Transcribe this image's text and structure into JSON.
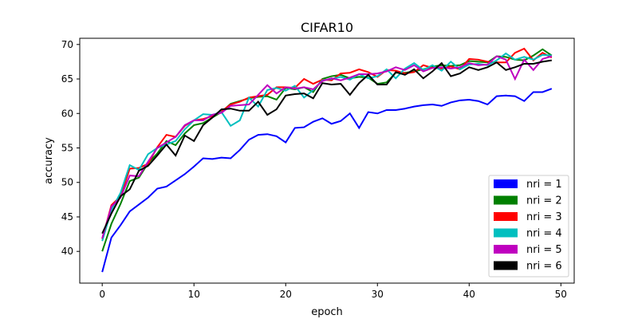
{
  "chart_data": {
    "type": "line",
    "title": "CIFAR10",
    "xlabel": "epoch",
    "ylabel": "accuracy",
    "xlim": [
      -2.45,
      51.45
    ],
    "ylim": [
      35.4,
      70.9
    ],
    "xticks": [
      0,
      10,
      20,
      30,
      40,
      50
    ],
    "yticks": [
      40,
      45,
      50,
      55,
      60,
      65,
      70
    ],
    "legend_position": "lower-right",
    "grid": false,
    "series": [
      {
        "name": "nri = 1",
        "color": "#0000ff",
        "values": [
          37.0,
          42.0,
          43.8,
          45.8,
          46.8,
          47.8,
          49.1,
          49.4,
          50.3,
          51.2,
          52.3,
          53.5,
          53.4,
          53.6,
          53.5,
          54.7,
          56.2,
          56.9,
          57.0,
          56.7,
          55.8,
          57.9,
          58.0,
          58.8,
          59.3,
          58.5,
          58.9,
          60.0,
          57.9,
          60.2,
          60.0,
          60.5,
          60.5,
          60.7,
          61.0,
          61.2,
          61.3,
          61.1,
          61.6,
          61.9,
          62.0,
          61.8,
          61.3,
          62.5,
          62.6,
          62.5,
          61.8,
          63.1,
          63.1,
          63.6
        ]
      },
      {
        "name": "nri = 2",
        "color": "#008000",
        "values": [
          40.0,
          44.0,
          46.9,
          50.2,
          50.7,
          52.8,
          54.2,
          56.0,
          55.4,
          57.1,
          58.3,
          58.6,
          59.4,
          60.2,
          61.4,
          61.8,
          62.2,
          62.4,
          62.5,
          62.0,
          63.7,
          63.5,
          63.8,
          63.1,
          65.0,
          65.4,
          65.6,
          65.1,
          65.3,
          65.2,
          64.3,
          64.5,
          65.9,
          65.9,
          66.1,
          66.4,
          66.8,
          67.0,
          66.9,
          67.0,
          67.6,
          67.5,
          67.4,
          68.3,
          68.2,
          67.8,
          67.7,
          68.4,
          69.3,
          68.4
        ]
      },
      {
        "name": "nri = 3",
        "color": "#ff0000",
        "values": [
          41.8,
          46.7,
          48.0,
          52.0,
          52.1,
          52.7,
          55.1,
          56.9,
          56.6,
          58.2,
          59.0,
          59.2,
          59.6,
          60.3,
          61.3,
          61.7,
          62.3,
          62.5,
          62.7,
          63.8,
          63.8,
          63.7,
          65.0,
          64.3,
          64.9,
          64.8,
          65.8,
          65.9,
          66.4,
          66.0,
          65.3,
          66.3,
          66.2,
          65.8,
          66.0,
          67.0,
          66.6,
          66.5,
          66.8,
          66.4,
          67.9,
          67.8,
          67.5,
          67.4,
          67.4,
          68.8,
          69.4,
          67.7,
          68.8,
          68.1
        ]
      },
      {
        "name": "nri = 4",
        "color": "#00bfbf",
        "values": [
          41.5,
          46.0,
          48.5,
          52.5,
          51.8,
          54.1,
          55.0,
          55.5,
          56.0,
          57.7,
          59.0,
          59.9,
          59.8,
          60.2,
          58.2,
          59.0,
          62.3,
          61.0,
          63.4,
          63.7,
          63.3,
          64.0,
          62.3,
          63.4,
          64.8,
          65.0,
          65.3,
          64.9,
          65.7,
          65.1,
          65.4,
          66.4,
          65.1,
          66.5,
          67.3,
          66.3,
          67.0,
          66.2,
          67.5,
          66.4,
          67.1,
          67.2,
          67.0,
          67.7,
          68.7,
          67.8,
          68.2,
          67.8,
          68.5,
          68.4
        ]
      },
      {
        "name": "nri = 5",
        "color": "#bf00bf",
        "values": [
          41.9,
          46.5,
          47.8,
          51.0,
          50.9,
          53.0,
          55.0,
          55.8,
          56.6,
          58.3,
          59.0,
          59.0,
          59.8,
          60.1,
          61.1,
          61.2,
          61.3,
          62.7,
          64.1,
          62.9,
          63.8,
          63.6,
          63.8,
          63.5,
          64.7,
          65.1,
          64.8,
          65.2,
          65.7,
          65.7,
          65.8,
          66.1,
          66.7,
          66.3,
          67.0,
          66.1,
          66.6,
          66.7,
          66.5,
          66.7,
          67.3,
          67.0,
          67.1,
          68.3,
          67.8,
          65.0,
          67.8,
          66.3,
          67.9,
          68.3
        ]
      },
      {
        "name": "nri = 6",
        "color": "#000000",
        "values": [
          42.6,
          45.5,
          48.0,
          49.0,
          51.7,
          52.4,
          53.9,
          55.5,
          53.9,
          56.8,
          56.0,
          58.3,
          59.4,
          60.6,
          60.7,
          60.4,
          60.4,
          61.7,
          59.8,
          60.6,
          62.6,
          62.8,
          62.9,
          62.2,
          64.4,
          64.2,
          64.3,
          62.7,
          64.4,
          65.6,
          64.2,
          64.2,
          66.0,
          65.6,
          66.4,
          65.1,
          66.1,
          67.3,
          65.4,
          65.8,
          66.7,
          66.3,
          66.7,
          67.4,
          66.3,
          66.7,
          67.2,
          67.2,
          67.5,
          67.7
        ]
      }
    ]
  }
}
